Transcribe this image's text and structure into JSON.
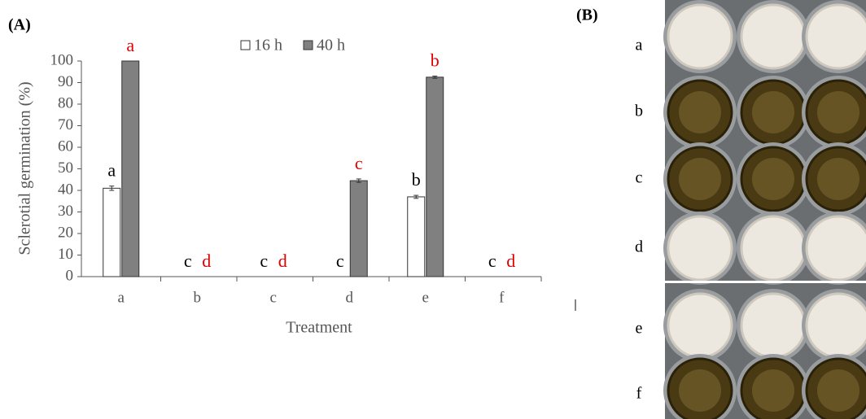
{
  "panel_a_label": "(A)",
  "panel_b_label": "(B)",
  "chart_data": {
    "type": "bar",
    "y_label": "Sclerotial germination (%)",
    "x_label": "Treatment",
    "categories": [
      "a",
      "b",
      "c",
      "d",
      "e",
      "f"
    ],
    "series": [
      {
        "name": "16 h",
        "color": "#ffffff",
        "letter_color": "#000000",
        "values": [
          41,
          0,
          0,
          0,
          37,
          0
        ],
        "errors": [
          1,
          0,
          0,
          0,
          0.7,
          0
        ],
        "letters": [
          "a",
          "c",
          "c",
          "c",
          "b",
          "c"
        ]
      },
      {
        "name": "40 h",
        "color": "#808080",
        "letter_color": "#e00000",
        "values": [
          100,
          0,
          0,
          44.5,
          92.5,
          0
        ],
        "errors": [
          0,
          0,
          0,
          0.8,
          0.5,
          0
        ],
        "letters": [
          "a",
          "d",
          "d",
          "c",
          "b",
          "d"
        ]
      }
    ],
    "ylim": [
      0,
      100
    ],
    "yticks": [
      0,
      10,
      20,
      30,
      40,
      50,
      60,
      70,
      80,
      90,
      100
    ],
    "grid": false,
    "legend": "top"
  },
  "photo": {
    "row_labels": [
      "a",
      "b",
      "c",
      "d",
      "e",
      "f"
    ]
  }
}
